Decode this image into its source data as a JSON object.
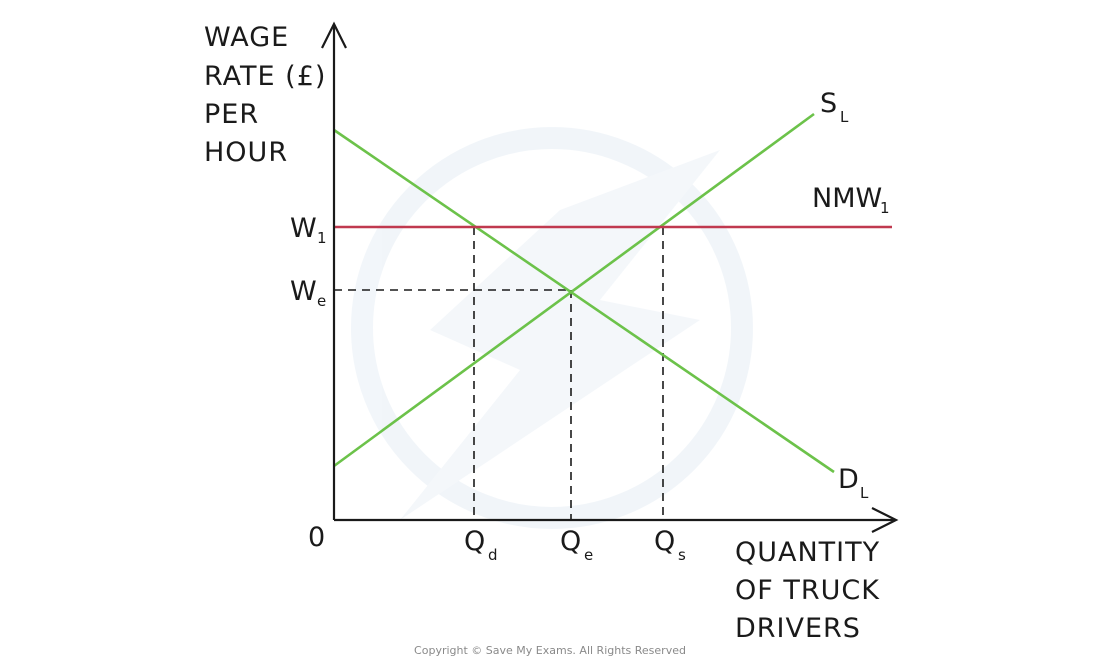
{
  "diagram": {
    "y_axis_title": [
      "WAGE",
      "RATE (£)",
      "PER",
      "HOUR"
    ],
    "x_axis_title": [
      "QUANTITY",
      "OF TRUCK",
      "DRIVERS"
    ],
    "origin": "0",
    "wage_ticks": [
      {
        "main": "W",
        "sub": "1"
      },
      {
        "main": "W",
        "sub": "e"
      }
    ],
    "quantity_ticks": [
      {
        "main": "Q",
        "sub": "d"
      },
      {
        "main": "Q",
        "sub": "e"
      },
      {
        "main": "Q",
        "sub": "s"
      }
    ],
    "curves": {
      "supply": {
        "main": "S",
        "sub": "L"
      },
      "demand": {
        "main": "D",
        "sub": "L"
      },
      "nmw": {
        "main": "NMW",
        "sub": "1"
      }
    },
    "colors": {
      "axis": "#1a1a1a",
      "supply": "#6cc24a",
      "demand": "#6cc24a",
      "nmw": "#c0394f",
      "dashed": "#1a1a1a"
    }
  },
  "footer": {
    "copyright": "Copyright © Save My Exams. All Rights Reserved"
  }
}
